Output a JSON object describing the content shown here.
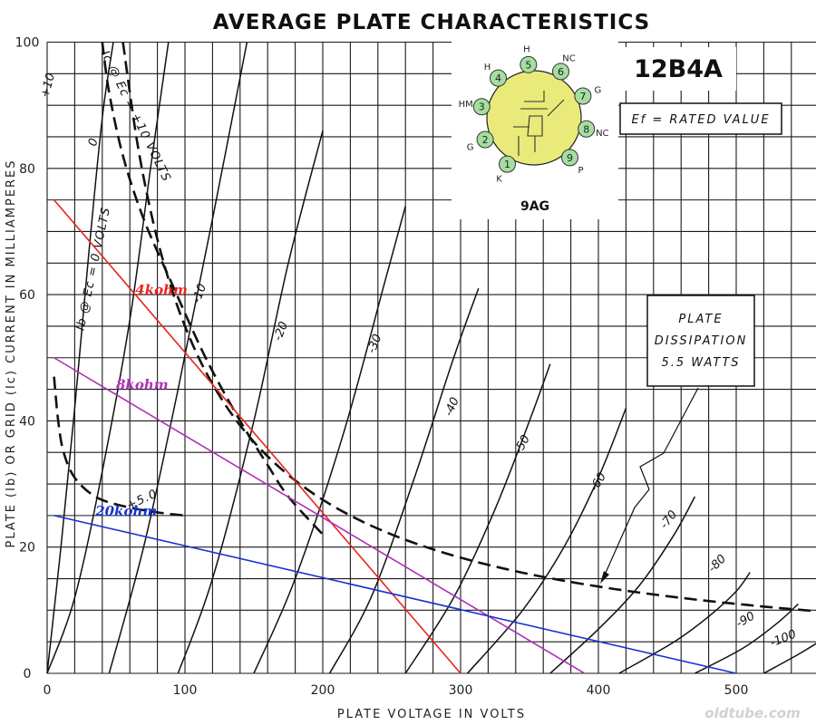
{
  "chart_data": {
    "type": "line",
    "title": "AVERAGE PLATE CHARACTERISTICS",
    "xlabel": "PLATE VOLTAGE IN VOLTS",
    "ylabel": "PLATE (Ib) OR GRID (Ic) CURRENT IN MILLIAMPERES",
    "xlim": [
      0,
      560
    ],
    "ylim": [
      0,
      100
    ],
    "x_ticks": [
      "0",
      "100",
      "200",
      "300",
      "400",
      "500"
    ],
    "y_ticks": [
      "0",
      "20",
      "40",
      "60",
      "80",
      "100"
    ],
    "grid": true,
    "series": [
      {
        "name": "+10",
        "x": [
          0,
          10,
          20,
          30,
          40,
          48
        ],
        "y": [
          0,
          20,
          42,
          66,
          88,
          100
        ]
      },
      {
        "name": "0",
        "x": [
          0,
          20,
          40,
          60,
          75,
          88
        ],
        "y": [
          0,
          12,
          32,
          56,
          80,
          100
        ]
      },
      {
        "name": "-10",
        "x": [
          45,
          70,
          95,
          120,
          145
        ],
        "y": [
          0,
          20,
          45,
          72,
          100
        ]
      },
      {
        "name": "-20",
        "x": [
          95,
          120,
          150,
          175,
          200
        ],
        "y": [
          0,
          15,
          40,
          65,
          86
        ]
      },
      {
        "name": "-30",
        "x": [
          150,
          180,
          215,
          245,
          260
        ],
        "y": [
          0,
          15,
          38,
          62,
          74
        ]
      },
      {
        "name": "-40",
        "x": [
          205,
          235,
          265,
          295,
          313
        ],
        "y": [
          0,
          12,
          30,
          50,
          61
        ]
      },
      {
        "name": "-50",
        "x": [
          260,
          295,
          325,
          350,
          365
        ],
        "y": [
          0,
          12,
          26,
          40,
          49
        ]
      },
      {
        "name": "-60",
        "x": [
          305,
          345,
          375,
          400,
          420
        ],
        "y": [
          0,
          10,
          20,
          31,
          42
        ]
      },
      {
        "name": "-70",
        "x": [
          365,
          400,
          430,
          455,
          470
        ],
        "y": [
          0,
          7,
          14,
          22,
          28
        ]
      },
      {
        "name": "-80",
        "x": [
          415,
          455,
          480,
          500,
          510
        ],
        "y": [
          0,
          5,
          9,
          13,
          16
        ]
      },
      {
        "name": "-90",
        "x": [
          470,
          505,
          530,
          545
        ],
        "y": [
          0,
          4,
          8,
          11
        ]
      },
      {
        "name": "-100",
        "x": [
          520,
          545,
          560
        ],
        "y": [
          0,
          3,
          5
        ]
      }
    ],
    "curve_labels": [
      "+10",
      "0",
      "-10",
      "-20",
      "-30",
      "-40",
      "-50",
      "-60",
      "-70",
      "-80",
      "-90",
      "-100"
    ],
    "grid_current_curves": [
      {
        "name": "Ec = +10 VOLTS",
        "x": [
          40,
          45,
          55,
          70,
          90,
          115,
          140,
          160,
          175,
          200
        ],
        "y": [
          100,
          92,
          82,
          72,
          62,
          50,
          40,
          33,
          28,
          22
        ]
      },
      {
        "name": "Ib @ Ec = 0 VOLTS",
        "x": [
          5,
          8,
          12,
          20,
          35,
          55,
          80,
          100
        ],
        "y": [
          47,
          40,
          35,
          31,
          28,
          26.5,
          25.5,
          25
        ]
      }
    ],
    "grid_current_labels": {
      "plus10": "Ic @ Ec = +10 VOLTS",
      "zero": "Ib @ Ec = 0 VOLTS",
      "plus5": "+5.0"
    },
    "dissipation_curve": {
      "label": "PLATE DISSIPATION 5.5 WATTS",
      "watts": 5.5
    },
    "load_lines": [
      {
        "name": "4kohm",
        "x": [
          5,
          300
        ],
        "y": [
          75,
          0
        ],
        "color": "#e8251c"
      },
      {
        "name": "8kohm",
        "x": [
          5,
          390
        ],
        "y": [
          50,
          0
        ],
        "color": "#b02fb8"
      },
      {
        "name": "20kohm",
        "x": [
          5,
          500
        ],
        "y": [
          25,
          0
        ],
        "color": "#1733d1"
      }
    ],
    "box_label": [
      "PLATE",
      "DISSIPATION",
      "5.5 WATTS"
    ],
    "tube_label": "12B4A",
    "filament_label": "Ef = RATED VALUE",
    "base_label": "9AG",
    "watermark": "oldtube.com"
  },
  "tube_diagram": {
    "fill_color": "#eaea7a",
    "pin_color": "#a5dea0",
    "pins": [
      {
        "num": "1",
        "label": "K"
      },
      {
        "num": "2",
        "label": "G"
      },
      {
        "num": "3",
        "label": "HM"
      },
      {
        "num": "4",
        "label": "H"
      },
      {
        "num": "5",
        "label": "H"
      },
      {
        "num": "6",
        "label": "NC"
      },
      {
        "num": "7",
        "label": "G"
      },
      {
        "num": "8",
        "label": "NC"
      },
      {
        "num": "9",
        "label": "P"
      }
    ]
  }
}
